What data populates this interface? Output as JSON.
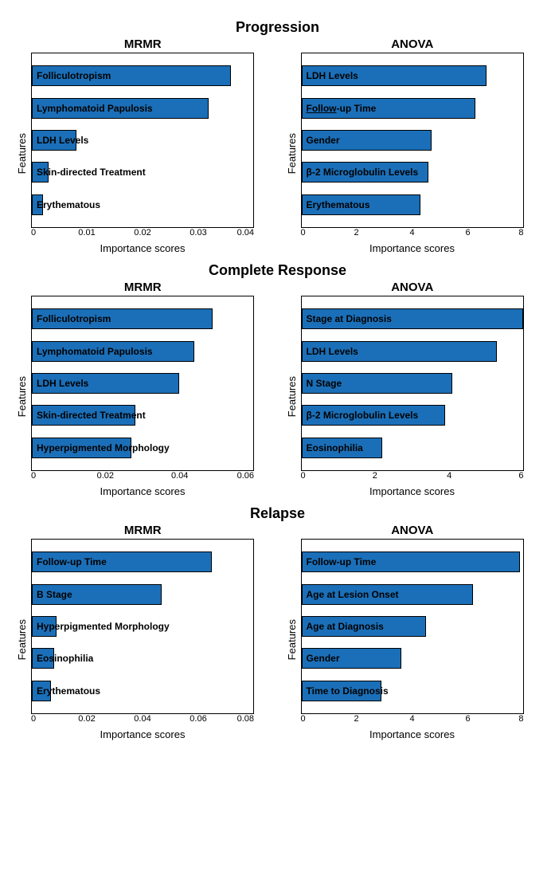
{
  "bar_color": "#1b6fb8",
  "sections": [
    {
      "title": "Progression",
      "panels": [
        {
          "title": "MRMR",
          "ylabel": "Features",
          "xlabel": "Importance scores",
          "xmax": 0.04,
          "xticks": [
            0,
            0.01,
            0.02,
            0.03,
            0.04
          ],
          "bars": [
            {
              "label": "Folliculotropism",
              "value": 0.036
            },
            {
              "label": "Lymphomatoid Papulosis",
              "value": 0.032
            },
            {
              "label": "LDH Levels",
              "value": 0.008
            },
            {
              "label": "Skin-directed Treatment",
              "value": 0.003
            },
            {
              "label": "Erythematous",
              "value": 0.002
            }
          ]
        },
        {
          "title": "ANOVA",
          "ylabel": "Features",
          "xlabel": "Importance scores",
          "xmax": 8,
          "xticks": [
            0,
            2,
            4,
            6,
            8
          ],
          "bars": [
            {
              "label": "LDH Levels",
              "value": 6.7
            },
            {
              "label": "Follow-up Time",
              "value": 6.3,
              "underline_prefix": "Follow"
            },
            {
              "label": "Gender",
              "value": 4.7
            },
            {
              "label": "β-2 Microglobulin Levels",
              "value": 4.6
            },
            {
              "label": "Erythematous",
              "value": 4.3
            }
          ]
        }
      ]
    },
    {
      "title": "Complete Response",
      "panels": [
        {
          "title": "MRMR",
          "ylabel": "Features",
          "xlabel": "Importance scores",
          "xmax": 0.06,
          "xticks": [
            0,
            0.02,
            0.04,
            0.06
          ],
          "bars": [
            {
              "label": "Folliculotropism",
              "value": 0.049
            },
            {
              "label": "Lymphomatoid Papulosis",
              "value": 0.044
            },
            {
              "label": "LDH Levels",
              "value": 0.04
            },
            {
              "label": "Skin-directed Treatment",
              "value": 0.028
            },
            {
              "label": "Hyperpigmented Morphology",
              "value": 0.027
            }
          ]
        },
        {
          "title": "ANOVA",
          "ylabel": "Features",
          "xlabel": "Importance scores",
          "xmax": 6,
          "xticks": [
            0,
            2,
            4,
            6
          ],
          "bars": [
            {
              "label": "Stage at Diagnosis",
              "value": 6.0
            },
            {
              "label": "LDH Levels",
              "value": 5.3
            },
            {
              "label": "N Stage",
              "value": 4.1
            },
            {
              "label": "β-2 Microglobulin Levels",
              "value": 3.9
            },
            {
              "label": "Eosinophilia",
              "value": 2.2
            }
          ]
        }
      ]
    },
    {
      "title": "Relapse",
      "panels": [
        {
          "title": "MRMR",
          "ylabel": "Features",
          "xlabel": "Importance scores",
          "xmax": 0.08,
          "xticks": [
            0,
            0.02,
            0.04,
            0.06,
            0.08
          ],
          "bars": [
            {
              "label": "Follow-up Time",
              "value": 0.065
            },
            {
              "label": "B Stage",
              "value": 0.047
            },
            {
              "label": "Hyperpigmented Morphology",
              "value": 0.009
            },
            {
              "label": "Eosinophilia",
              "value": 0.008
            },
            {
              "label": "Erythematous",
              "value": 0.007
            }
          ]
        },
        {
          "title": "ANOVA",
          "ylabel": "Features",
          "xlabel": "Importance scores",
          "xmax": 8,
          "xticks": [
            0,
            2,
            4,
            6,
            8
          ],
          "bars": [
            {
              "label": "Follow-up Time",
              "value": 7.9
            },
            {
              "label": "Age at Lesion Onset",
              "value": 6.2
            },
            {
              "label": "Age at Diagnosis",
              "value": 4.5
            },
            {
              "label": "Gender",
              "value": 3.6
            },
            {
              "label": "Time to Diagnosis",
              "value": 2.9
            }
          ]
        }
      ]
    }
  ]
}
